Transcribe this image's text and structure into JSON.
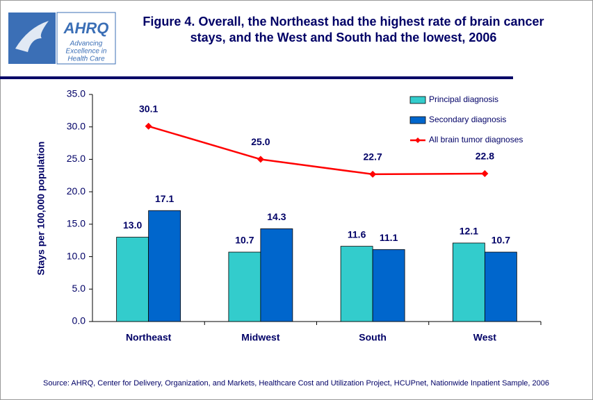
{
  "logo": {
    "name": "AHRQ",
    "tagline": [
      "Advancing",
      "Excellence in",
      "Health Care"
    ]
  },
  "chart_data": {
    "type": "bar",
    "title": [
      "Figure 4. Overall, the Northeast had the highest rate of brain cancer",
      "stays, and the West and South had the lowest, 2006"
    ],
    "y_label": "Stays per 100,000 population",
    "source": "Source: AHRQ, Center for Delivery, Organization, and Markets, Healthcare Cost and Utilization Project, HCUPnet, Nationwide Inpatient Sample, 2006",
    "categories": [
      "Northeast",
      "Midwest",
      "South",
      "West"
    ],
    "series": [
      {
        "name": "Principal diagnosis",
        "type": "bar",
        "color": "#33cccc",
        "values": [
          13.0,
          10.7,
          11.6,
          12.1
        ],
        "value_labels": [
          "13.0",
          "10.7",
          "11.6",
          "12.1"
        ]
      },
      {
        "name": "Secondary diagnosis",
        "type": "bar",
        "color": "#0066cc",
        "values": [
          17.1,
          14.3,
          11.1,
          10.7
        ],
        "value_labels": [
          "17.1",
          "14.3",
          "11.1",
          "10.7"
        ]
      },
      {
        "name": "All brain tumor diagnoses",
        "type": "line",
        "color": "#ff0000",
        "values": [
          30.1,
          25.0,
          22.7,
          22.8
        ],
        "value_labels": [
          "30.1",
          "25.0",
          "22.7",
          "22.8"
        ]
      }
    ],
    "ylim": [
      0,
      35
    ],
    "yticks": [
      {
        "value": 0,
        "label": "0.0"
      },
      {
        "value": 5,
        "label": "5.0"
      },
      {
        "value": 10,
        "label": "10.0"
      },
      {
        "value": 15,
        "label": "15.0"
      },
      {
        "value": 20,
        "label": "20.0"
      },
      {
        "value": 25,
        "label": "25.0"
      },
      {
        "value": 30,
        "label": "30.0"
      },
      {
        "value": 35,
        "label": "35.0"
      }
    ],
    "legend": "top-right",
    "grid": false
  }
}
